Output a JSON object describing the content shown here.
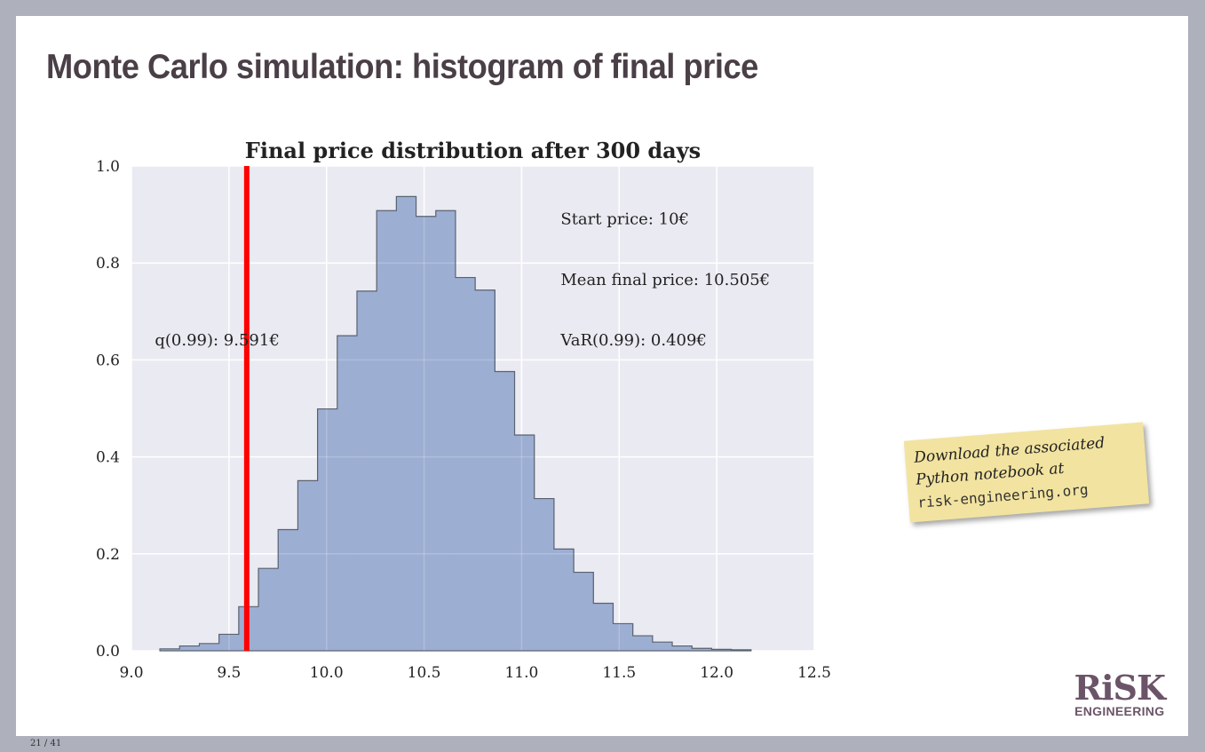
{
  "slide": {
    "title": "Monte Carlo simulation: histogram of final price",
    "page_number": "21 / 41"
  },
  "note": {
    "line1": "Download the associated",
    "line2": "Python notebook at",
    "line3": "risk-engineering.org"
  },
  "logo": {
    "text_big": "RiSK",
    "text_small": "ENGINEERING",
    "color": "#6b5468"
  },
  "colors": {
    "frame": "#aeb0bc",
    "plot_bg": "#eaeaf2",
    "bar_fill": "#9daed3",
    "bar_edge": "#5a6270",
    "grid": "#ffffff",
    "var_line": "#ff0000"
  },
  "chart_data": {
    "type": "bar",
    "subtype": "histogram-step",
    "title": "Final price distribution after 300 days",
    "xlabel": "",
    "ylabel": "",
    "xlim": [
      9.0,
      12.5
    ],
    "ylim": [
      0.0,
      1.0
    ],
    "grid": true,
    "xticks": [
      "9.0",
      "9.5",
      "10.0",
      "10.5",
      "11.0",
      "11.5",
      "12.0",
      "12.5"
    ],
    "xtick_values": [
      9.0,
      9.5,
      10.0,
      10.5,
      11.0,
      11.5,
      12.0,
      12.5
    ],
    "yticks": [
      "0.0",
      "0.2",
      "0.4",
      "0.6",
      "0.8",
      "1.0"
    ],
    "ytick_values": [
      0.0,
      0.2,
      0.4,
      0.6,
      0.8,
      1.0
    ],
    "bin_start": 9.146,
    "bin_width": 0.101,
    "values": [
      0.004,
      0.01,
      0.015,
      0.034,
      0.091,
      0.17,
      0.25,
      0.351,
      0.499,
      0.65,
      0.742,
      0.908,
      0.937,
      0.896,
      0.908,
      0.77,
      0.744,
      0.576,
      0.445,
      0.314,
      0.21,
      0.162,
      0.098,
      0.056,
      0.031,
      0.018,
      0.01,
      0.005,
      0.003,
      0.002
    ],
    "vline": {
      "x": 9.591,
      "label": "q(0.99): 9.591€"
    },
    "annotations": [
      {
        "text": "Start price: 10€",
        "x": 11.2,
        "y": 0.88
      },
      {
        "text": "Mean final price: 10.505€",
        "x": 11.2,
        "y": 0.755
      },
      {
        "text": "VaR(0.99): 0.409€",
        "x": 11.2,
        "y": 0.63
      }
    ],
    "vline_label_pos": {
      "x": 9.12,
      "y": 0.63
    }
  }
}
